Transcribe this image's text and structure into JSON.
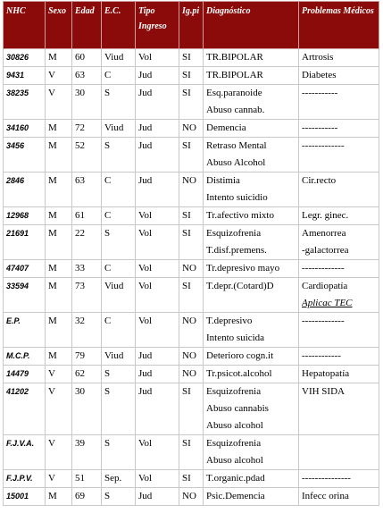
{
  "table": {
    "header": [
      "NHC",
      "Sexo",
      "Edad",
      "E.C.",
      "Tipo Ingreso",
      "Ig.pi",
      "Diagnóstico",
      "Problemas Médicos"
    ],
    "rows": [
      [
        "30826",
        "M",
        "60",
        "Viud",
        "Vol",
        "SI",
        [
          "TR.BIPOLAR"
        ],
        [
          "Artrosis"
        ]
      ],
      [
        "9431",
        "V",
        "63",
        "C",
        "Jud",
        "SI",
        [
          "TR.BIPOLAR"
        ],
        [
          "Diabetes"
        ]
      ],
      [
        "38235",
        "V",
        "30",
        "S",
        "Jud",
        "SI",
        [
          "Esq.paranoide",
          "Abuso cannab."
        ],
        [
          "-----------"
        ]
      ],
      [
        "34160",
        "M",
        "72",
        "Viud",
        "Jud",
        "NO",
        [
          "Demencia"
        ],
        [
          "-----------"
        ]
      ],
      [
        "3456",
        "M",
        "52",
        "S",
        "Jud",
        "SI",
        [
          "Retraso Mental",
          "Abuso Alcohol"
        ],
        [
          "-------------"
        ]
      ],
      [
        "2846",
        "M",
        "63",
        "C",
        "Jud",
        "NO",
        [
          "Distimia",
          "Intento suicidio"
        ],
        [
          "Cir.recto"
        ]
      ],
      [
        "12968",
        "M",
        "61",
        "C",
        "Vol",
        "SI",
        [
          "Tr.afectivo mixto"
        ],
        [
          "Legr. ginec."
        ]
      ],
      [
        "21691",
        "M",
        "22",
        "S",
        "Vol",
        "SI",
        [
          "Esquizofrenia",
          "T.disf.premens."
        ],
        [
          "Amenorrea",
          "-galactorrea"
        ]
      ],
      [
        "47407",
        "M",
        "33",
        "C",
        "Vol",
        "NO",
        [
          "Tr.depresivo mayo"
        ],
        [
          "-------------"
        ]
      ],
      [
        "33594",
        "M",
        "73",
        "Viud",
        "Vol",
        "SI",
        [
          "T.depr.(Cotard)D"
        ],
        [
          "Cardiopatía",
          "Aplicac TEC"
        ]
      ],
      [
        "E.P.",
        "M",
        "32",
        "C",
        "Vol",
        "NO",
        [
          "T.depresivo",
          "Intento suicida"
        ],
        [
          "-------------"
        ]
      ],
      [
        "M.C.P.",
        "M",
        "79",
        "Viud",
        "Jud",
        "NO",
        [
          "Deterioro cogn.it"
        ],
        [
          "------------"
        ]
      ],
      [
        "14479",
        "V",
        "62",
        "S",
        "Jud",
        "NO",
        [
          "Tr.psicot.alcohol"
        ],
        [
          "Hepatopatía"
        ]
      ],
      [
        "41202",
        "V",
        "30",
        "S",
        "Jud",
        "SI",
        [
          "Esquizofrenia",
          "Abuso cannabis",
          "Abuso alcohol"
        ],
        [
          "VIH SIDA"
        ]
      ],
      [
        "F.J.V.A.",
        "V",
        "39",
        "S",
        "Vol",
        "SI",
        [
          "Esquizofrenia",
          "Abuso alcohol"
        ],
        []
      ],
      [
        "F.J.P.V.",
        "V",
        "51",
        "Sep.",
        "Vol",
        "SI",
        [
          "T.organic.pdad"
        ],
        [
          "---------------"
        ]
      ],
      [
        "15001",
        "M",
        "69",
        "S",
        "Jud",
        "NO",
        [
          "Psic.Demencia"
        ],
        [
          "Infecc orina"
        ]
      ]
    ]
  }
}
